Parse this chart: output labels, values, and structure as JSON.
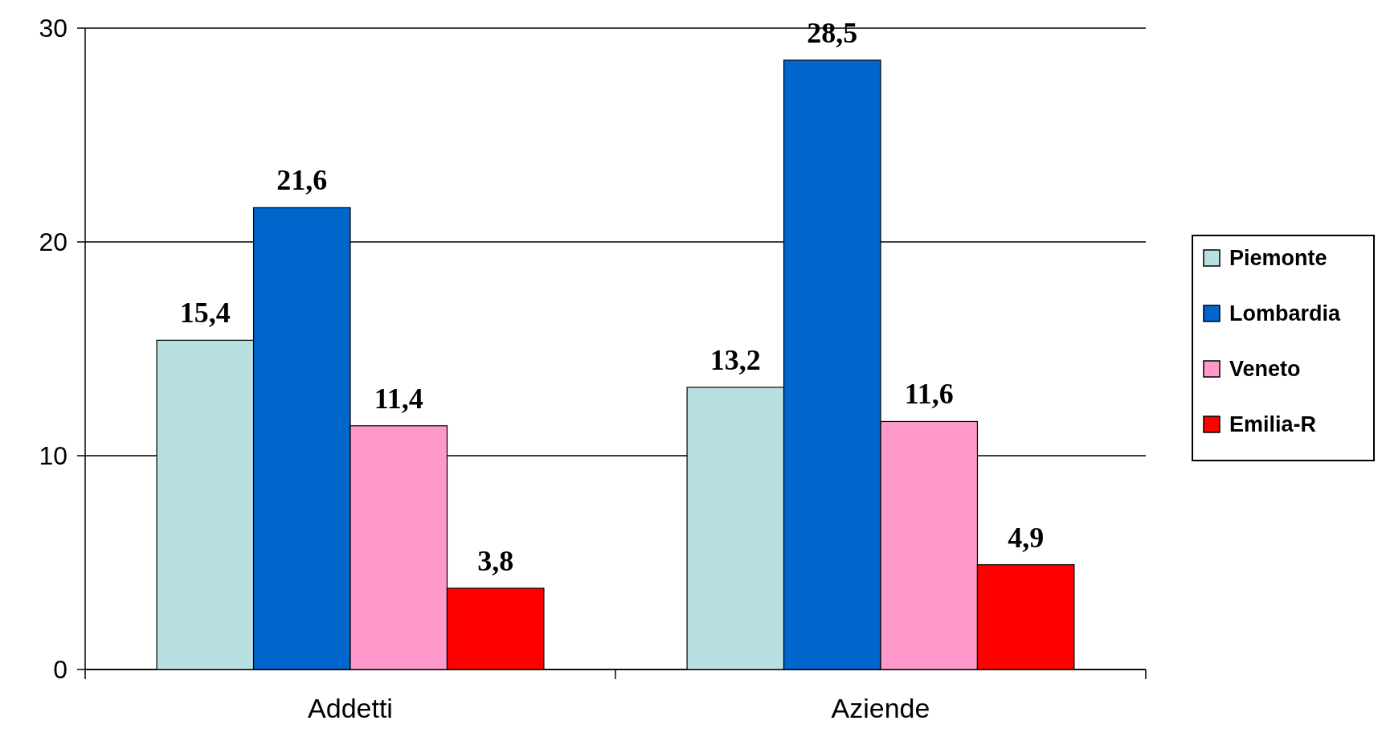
{
  "chart_data": {
    "type": "bar",
    "categories": [
      "Addetti",
      "Aziende"
    ],
    "series": [
      {
        "name": "Piemonte",
        "color": "#b8e0e2",
        "values": [
          15.4,
          13.2
        ],
        "value_labels": [
          "15,4",
          "13,2"
        ]
      },
      {
        "name": "Lombardia",
        "color": "#0066cc",
        "values": [
          21.6,
          28.5
        ],
        "value_labels": [
          "21,6",
          "28,5"
        ]
      },
      {
        "name": "Veneto",
        "color": "#ff99cc",
        "values": [
          11.4,
          11.6
        ],
        "value_labels": [
          "11,4",
          "11,6"
        ]
      },
      {
        "name": "Emilia-R",
        "color": "#ff0000",
        "values": [
          3.8,
          4.9
        ],
        "value_labels": [
          "3,8",
          "4,9"
        ]
      }
    ],
    "ylim": [
      0,
      30
    ],
    "yticks": [
      0,
      10,
      20,
      30
    ],
    "grid": "y",
    "legend": "right"
  }
}
